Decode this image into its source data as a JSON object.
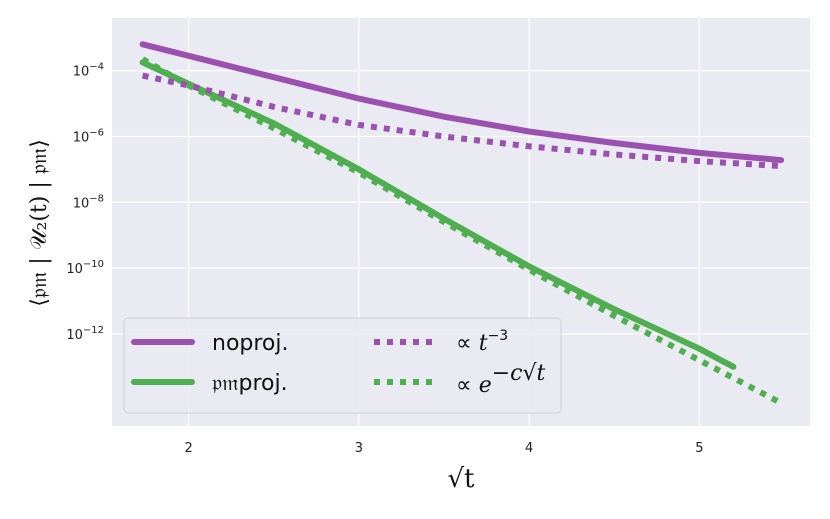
{
  "chart_data": {
    "type": "line",
    "xlabel": "√t",
    "ylabel": "⟨𝔭𝔪 | 𝒰₂(t) | 𝔭𝔪⟩",
    "xlim": [
      1.55,
      5.65
    ],
    "ylim": [
      -14.8,
      -2.4
    ],
    "y_scale": "log10",
    "grid": true,
    "legend_position": "bottom-left",
    "x_ticks": [
      {
        "value": 2,
        "label": "2"
      },
      {
        "value": 3,
        "label": "3"
      },
      {
        "value": 4,
        "label": "4"
      },
      {
        "value": 5,
        "label": "5"
      }
    ],
    "y_ticks": [
      {
        "exp": -4,
        "base": "10",
        "sup": "−4"
      },
      {
        "exp": -6,
        "base": "10",
        "sup": "−6"
      },
      {
        "exp": -8,
        "base": "10",
        "sup": "−8"
      },
      {
        "exp": -10,
        "base": "10",
        "sup": "−10"
      },
      {
        "exp": -12,
        "base": "10",
        "sup": "−12"
      }
    ],
    "series": [
      {
        "name": "noproj.",
        "color": "#9B51AF",
        "style": "solid",
        "x": [
          1.73,
          2.0,
          2.5,
          3.0,
          3.5,
          4.0,
          4.5,
          5.0,
          5.48
        ],
        "y_log10": [
          -3.2,
          -3.55,
          -4.2,
          -4.85,
          -5.4,
          -5.85,
          -6.2,
          -6.5,
          -6.72
        ]
      },
      {
        "name": "𝔭𝔪proj.",
        "color": "#4FAE4F",
        "style": "solid",
        "x": [
          1.73,
          2.0,
          2.5,
          3.0,
          3.5,
          4.0,
          4.5,
          5.0,
          5.2
        ],
        "y_log10": [
          -3.75,
          -4.4,
          -5.6,
          -7.0,
          -8.5,
          -9.95,
          -11.25,
          -12.45,
          -13.0
        ]
      },
      {
        "name": "∝ t⁻³",
        "color": "#9B51AF",
        "style": "dotted",
        "x": [
          1.73,
          2.0,
          2.5,
          3.0,
          3.5,
          4.0,
          4.5,
          5.0,
          5.48
        ],
        "y_log10": [
          -4.15,
          -4.45,
          -5.1,
          -5.65,
          -6.0,
          -6.3,
          -6.55,
          -6.75,
          -6.9
        ]
      },
      {
        "name": "∝ e^(−c√t)",
        "color": "#4FAE4F",
        "style": "dotted",
        "x": [
          1.73,
          2.0,
          2.5,
          3.0,
          3.5,
          4.0,
          4.5,
          5.0,
          5.48
        ],
        "y_log10": [
          -3.65,
          -4.45,
          -5.75,
          -7.1,
          -8.6,
          -10.05,
          -11.45,
          -12.8,
          -14.1
        ]
      }
    ]
  },
  "legend": {
    "items": [
      {
        "label": "noproj.",
        "color": "#9B51AF",
        "style": "solid"
      },
      {
        "label": "𝔭𝔪proj.",
        "color": "#4FAE4F",
        "style": "solid"
      },
      {
        "label_prefix": "∝ ",
        "label_main": "t",
        "label_sup": "−3",
        "color": "#9B51AF",
        "style": "dotted"
      },
      {
        "label_prefix": "∝ ",
        "label_main": "e",
        "label_sup": "−c√t",
        "color": "#4FAE4F",
        "style": "dotted"
      }
    ]
  }
}
